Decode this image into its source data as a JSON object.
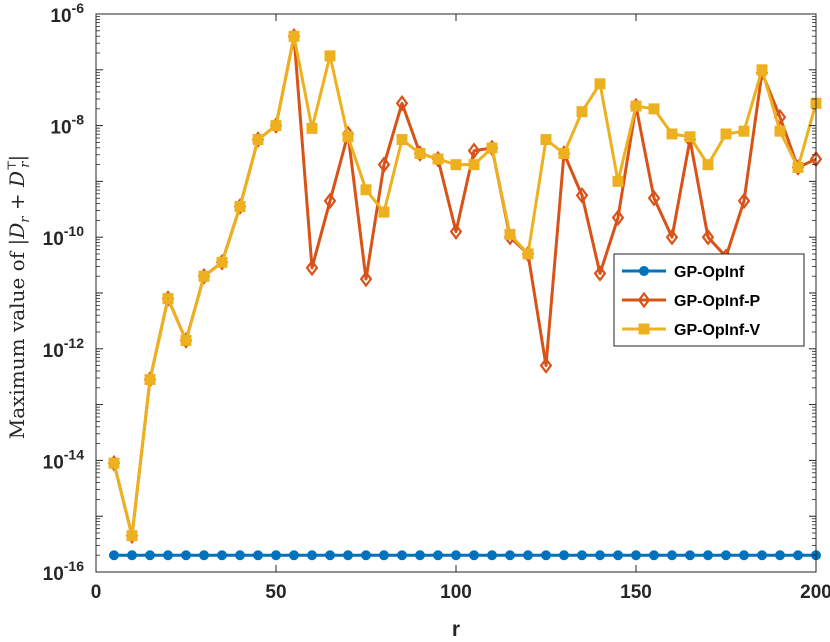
{
  "chart_data": {
    "type": "line",
    "xlabel": "r",
    "ylabel": "Maximum value of |D_r + D_r^T|",
    "ylabel_parts": {
      "prefix": "Maximum value of ",
      "lhs": "D",
      "sub1": "r",
      "plus": " + ",
      "rhs": "D",
      "sub2": "r",
      "sup": "⊤"
    },
    "xlim": [
      0,
      200
    ],
    "ylim_log10": [
      -16,
      -6
    ],
    "yscale": "log",
    "x_ticks": [
      0,
      50,
      100,
      150,
      200
    ],
    "y_tick_exponents": [
      -16,
      -14,
      -12,
      -10,
      -8,
      -6
    ],
    "y_tick_base": "10",
    "grid": false,
    "legend_position": "right-middle",
    "x": [
      5,
      10,
      15,
      20,
      25,
      30,
      35,
      40,
      45,
      50,
      55,
      60,
      65,
      70,
      75,
      80,
      85,
      90,
      95,
      100,
      105,
      110,
      115,
      120,
      125,
      130,
      135,
      140,
      145,
      150,
      155,
      160,
      165,
      170,
      175,
      180,
      185,
      190,
      195,
      200
    ],
    "series": [
      {
        "name": "GP-OpInf",
        "color": "#0072BD",
        "marker": "circle",
        "log10_values": [
          -15.7,
          -15.7,
          -15.7,
          -15.7,
          -15.7,
          -15.7,
          -15.7,
          -15.7,
          -15.7,
          -15.7,
          -15.7,
          -15.7,
          -15.7,
          -15.7,
          -15.7,
          -15.7,
          -15.7,
          -15.7,
          -15.7,
          -15.7,
          -15.7,
          -15.7,
          -15.7,
          -15.7,
          -15.7,
          -15.7,
          -15.7,
          -15.7,
          -15.7,
          -15.7,
          -15.7,
          -15.7,
          -15.7,
          -15.7,
          -15.7,
          -15.7,
          -15.7,
          -15.7,
          -15.7,
          -15.7
        ]
      },
      {
        "name": "GP-OpInf-P",
        "color": "#D95319",
        "marker": "diamond",
        "log10_values": [
          -14.05,
          -15.35,
          -12.55,
          -11.1,
          -11.85,
          -10.7,
          -10.45,
          -9.45,
          -8.25,
          -8.0,
          -6.4,
          -10.55,
          -9.35,
          -8.15,
          -10.75,
          -8.7,
          -7.6,
          -8.5,
          -8.6,
          -9.9,
          -8.45,
          -8.4,
          -10.0,
          -10.3,
          -12.3,
          -8.5,
          -9.25,
          -10.65,
          -9.65,
          -7.65,
          -9.3,
          -10.0,
          -8.25,
          -10.0,
          -10.35,
          -9.35,
          -7.05,
          -7.85,
          -8.75,
          -8.6
        ]
      },
      {
        "name": "GP-OpInf-V",
        "color": "#EDB120",
        "marker": "square",
        "log10_values": [
          -14.05,
          -15.35,
          -12.55,
          -11.1,
          -11.85,
          -10.7,
          -10.45,
          -9.45,
          -8.25,
          -8.0,
          -6.4,
          -8.05,
          -6.75,
          -8.2,
          -9.15,
          -9.55,
          -8.25,
          -8.5,
          -8.6,
          -8.7,
          -8.7,
          -8.4,
          -9.95,
          -10.3,
          -8.25,
          -8.5,
          -7.75,
          -7.25,
          -9.0,
          -7.65,
          -7.7,
          -8.15,
          -8.2,
          -8.7,
          -8.15,
          -8.1,
          -7.0,
          -8.1,
          -8.75,
          -7.6
        ]
      }
    ]
  }
}
